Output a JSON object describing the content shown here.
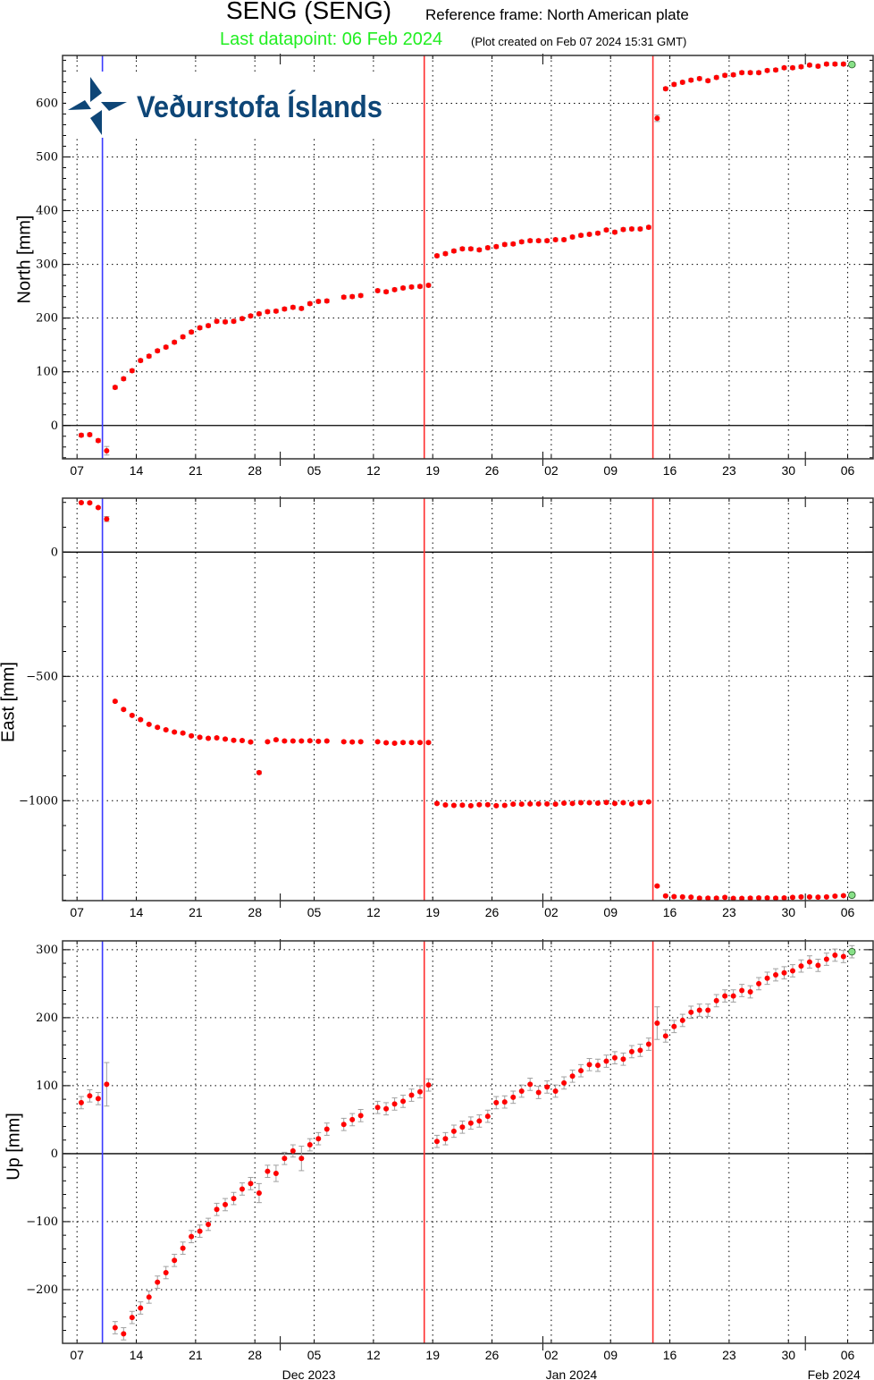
{
  "header": {
    "title": "SENG (SENG)",
    "reference_frame": "Reference frame: North American plate",
    "last_datapoint": "Last datapoint: 06 Feb 2024",
    "plot_created": "(Plot created on Feb 07 2024 15:31 GMT)"
  },
  "logo": {
    "text": "Veðurstofa Íslands",
    "color": "#0e4677"
  },
  "chart_data": {
    "type": "scatter",
    "colors": {
      "point": "#ff0000",
      "last_point": "#88e088",
      "error_bar": "#a0a0a0",
      "event_blue": "#3a3aff",
      "event_red": "#ff3030",
      "zero_line": "#000000"
    },
    "grid": true,
    "xlim": [
      "2023-11-05T07:00",
      "2024-02-09T00:00"
    ],
    "x_ticks": [
      {
        "date": "2023-11-07",
        "label": "07"
      },
      {
        "date": "2023-11-14",
        "label": "14"
      },
      {
        "date": "2023-11-21",
        "label": "21"
      },
      {
        "date": "2023-11-28",
        "label": "28"
      },
      {
        "date": "2023-12-05",
        "label": "05"
      },
      {
        "date": "2023-12-12",
        "label": "12"
      },
      {
        "date": "2023-12-19",
        "label": "19"
      },
      {
        "date": "2023-12-26",
        "label": "26"
      },
      {
        "date": "2024-01-02",
        "label": "02"
      },
      {
        "date": "2024-01-09",
        "label": "09"
      },
      {
        "date": "2024-01-16",
        "label": "16"
      },
      {
        "date": "2024-01-23",
        "label": "23"
      },
      {
        "date": "2024-01-30",
        "label": "30"
      },
      {
        "date": "2024-02-06",
        "label": "06"
      }
    ],
    "month_labels": [
      {
        "date": "2023-12-01",
        "label": "Dec 2023"
      },
      {
        "date": "2024-01-01",
        "label": "Jan 2024"
      },
      {
        "date": "2024-02-01",
        "label": "Feb 2024"
      }
    ],
    "event_lines": [
      {
        "date": "2023-11-10",
        "color": "blue"
      },
      {
        "date": "2023-12-18",
        "color": "red"
      },
      {
        "date": "2024-01-14",
        "color": "red"
      }
    ],
    "dates": [
      "2023-11-07",
      "2023-11-08",
      "2023-11-09",
      "2023-11-10",
      "2023-11-11",
      "2023-11-12",
      "2023-11-13",
      "2023-11-14",
      "2023-11-15",
      "2023-11-16",
      "2023-11-17",
      "2023-11-18",
      "2023-11-19",
      "2023-11-20",
      "2023-11-21",
      "2023-11-22",
      "2023-11-23",
      "2023-11-24",
      "2023-11-25",
      "2023-11-26",
      "2023-11-27",
      "2023-11-28",
      "2023-11-29",
      "2023-11-30",
      "2023-12-01",
      "2023-12-02",
      "2023-12-03",
      "2023-12-04",
      "2023-12-05",
      "2023-12-06",
      "2023-12-07",
      "2023-12-08",
      "2023-12-09",
      "2023-12-10",
      "2023-12-11",
      "2023-12-12",
      "2023-12-13",
      "2023-12-14",
      "2023-12-15",
      "2023-12-16",
      "2023-12-17",
      "2023-12-18",
      "2023-12-19",
      "2023-12-20",
      "2023-12-21",
      "2023-12-22",
      "2023-12-23",
      "2023-12-24",
      "2023-12-25",
      "2023-12-26",
      "2023-12-27",
      "2023-12-28",
      "2023-12-29",
      "2023-12-30",
      "2023-12-31",
      "2024-01-01",
      "2024-01-02",
      "2024-01-03",
      "2024-01-04",
      "2024-01-05",
      "2024-01-06",
      "2024-01-07",
      "2024-01-08",
      "2024-01-09",
      "2024-01-10",
      "2024-01-11",
      "2024-01-12",
      "2024-01-13",
      "2024-01-14",
      "2024-01-15",
      "2024-01-16",
      "2024-01-17",
      "2024-01-18",
      "2024-01-19",
      "2024-01-20",
      "2024-01-21",
      "2024-01-22",
      "2024-01-23",
      "2024-01-24",
      "2024-01-25",
      "2024-01-26",
      "2024-01-27",
      "2024-01-28",
      "2024-01-29",
      "2024-01-30",
      "2024-01-31",
      "2024-02-01",
      "2024-02-02",
      "2024-02-03",
      "2024-02-04",
      "2024-02-05",
      "2024-02-06"
    ],
    "panels": [
      {
        "ylabel": "North [mm]",
        "ylim": [
          -62,
          689
        ],
        "y_ticks": [
          {
            "v": 0,
            "label": "0"
          },
          {
            "v": 100,
            "label": "100"
          },
          {
            "v": 200,
            "label": "200"
          },
          {
            "v": 300,
            "label": "300"
          },
          {
            "v": 400,
            "label": "400"
          },
          {
            "v": 500,
            "label": "500"
          },
          {
            "v": 600,
            "label": "600"
          }
        ],
        "y_minor_step": 20,
        "values": [
          -18,
          -17,
          -28,
          -47,
          71,
          87,
          102,
          121,
          129,
          139,
          146,
          155,
          165,
          174,
          182,
          186,
          194,
          193,
          194,
          199,
          204,
          208,
          212,
          213,
          217,
          220,
          218,
          227,
          231,
          232,
          null,
          239,
          240,
          242,
          null,
          251,
          249,
          253,
          256,
          258,
          259,
          261,
          316,
          320,
          325,
          329,
          329,
          327,
          331,
          333,
          337,
          338,
          342,
          344,
          344,
          344,
          346,
          346,
          351,
          354,
          356,
          358,
          364,
          360,
          365,
          366,
          366,
          369,
          572,
          627,
          635,
          639,
          643,
          646,
          642,
          648,
          652,
          653,
          657,
          657,
          657,
          661,
          662,
          666,
          666,
          668,
          671,
          669,
          673,
          673,
          673,
          672
        ],
        "errors": {
          "default": 3,
          "2023-11-10": 8,
          "2024-01-14": 6
        }
      },
      {
        "ylabel": "East [mm]",
        "ylim": [
          -1402,
          217
        ],
        "y_ticks": [
          {
            "v": 0,
            "label": "0"
          },
          {
            "v": -500,
            "label": "−500"
          },
          {
            "v": -1000,
            "label": "−1000"
          }
        ],
        "y_minor_step": 100,
        "values": [
          199,
          198,
          179,
          133,
          -600,
          -633,
          -657,
          -674,
          -693,
          -705,
          -715,
          -724,
          -728,
          -739,
          -745,
          -749,
          -747,
          -752,
          -757,
          -758,
          -764,
          -887,
          -763,
          -755,
          -760,
          -760,
          -760,
          -759,
          -761,
          -760,
          null,
          -763,
          -764,
          -763,
          null,
          -763,
          -767,
          -769,
          -766,
          -766,
          -766,
          -766,
          -1011,
          -1017,
          -1019,
          -1018,
          -1020,
          -1016,
          -1016,
          -1020,
          -1019,
          -1014,
          -1014,
          -1013,
          -1013,
          -1013,
          -1014,
          -1010,
          -1011,
          -1008,
          -1008,
          -1010,
          -1007,
          -1011,
          -1008,
          -1013,
          -1008,
          -1005,
          -1343,
          -1383,
          -1386,
          -1387,
          -1388,
          -1392,
          -1392,
          -1392,
          -1389,
          -1393,
          -1393,
          -1392,
          -1391,
          -1391,
          -1392,
          -1391,
          -1389,
          -1387,
          -1387,
          -1388,
          -1387,
          -1384,
          -1382,
          -1380
        ],
        "errors": {
          "default": 4,
          "2023-11-10": 10,
          "2023-11-28": 6
        }
      },
      {
        "ylabel": "Up [mm]",
        "ylim": [
          -279,
          313
        ],
        "y_ticks": [
          {
            "v": -200,
            "label": "−200"
          },
          {
            "v": -100,
            "label": "−100"
          },
          {
            "v": 0,
            "label": "0"
          },
          {
            "v": 100,
            "label": "100"
          },
          {
            "v": 200,
            "label": "200"
          },
          {
            "v": 300,
            "label": "300"
          }
        ],
        "y_minor_step": 20,
        "values": [
          75,
          85,
          81,
          102,
          -256,
          -265,
          -241,
          -227,
          -211,
          -189,
          -175,
          -157,
          -139,
          -122,
          -114,
          -104,
          -82,
          -75,
          -66,
          -52,
          -44,
          -58,
          -26,
          -29,
          -7,
          4,
          -7,
          13,
          22,
          36,
          null,
          43,
          50,
          56,
          null,
          68,
          66,
          73,
          77,
          86,
          91,
          101,
          18,
          22,
          33,
          39,
          45,
          48,
          55,
          75,
          76,
          83,
          92,
          102,
          90,
          98,
          92,
          104,
          114,
          122,
          131,
          130,
          136,
          141,
          139,
          150,
          152,
          161,
          192,
          173,
          187,
          196,
          208,
          211,
          211,
          225,
          232,
          232,
          240,
          238,
          250,
          258,
          263,
          266,
          269,
          276,
          282,
          277,
          286,
          292,
          290,
          297
        ],
        "errors": {
          "default": 9,
          "2023-11-10": 32,
          "2023-11-28": 14,
          "2023-11-30": 12,
          "2023-12-03": 18,
          "2024-01-14": 24
        }
      }
    ]
  }
}
